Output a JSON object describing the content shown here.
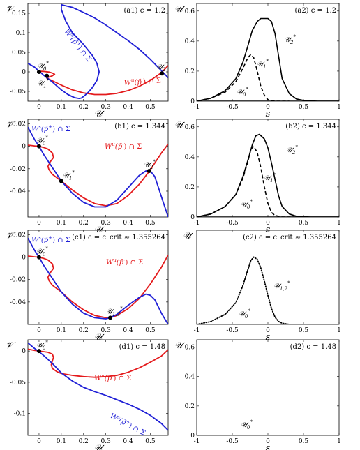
{
  "chart_data": [
    {
      "id": "a1",
      "type": "line",
      "title": "(a1) c = 1.2",
      "xlabel": "U",
      "ylabel": "V",
      "xlim": [
        -0.05,
        0.58
      ],
      "ylim": [
        -0.075,
        0.175
      ],
      "xticks": [
        0,
        0.1,
        0.2,
        0.3,
        0.4,
        0.5
      ],
      "xticklabels": [
        "0",
        "0.1",
        "0.2",
        "0.3",
        "0.4",
        "0.5"
      ],
      "yticks": [
        -0.05,
        0,
        0.05,
        0.1,
        0.15
      ],
      "yticklabels": [
        "-0.05",
        "0",
        "0.05",
        "0.1",
        "0.15"
      ],
      "series": [
        {
          "name": "W^u(p̄^-) ∩ Σ",
          "color": "#e41a1c",
          "x": [
            0,
            0.005,
            0.012,
            0.02,
            0.03,
            0.045,
            0.06,
            0.07,
            0.06,
            0.045,
            0.035,
            0.05,
            0.1,
            0.15,
            0.2,
            0.25,
            0.3,
            0.35,
            0.4,
            0.45,
            0.5,
            0.55,
            0.58
          ],
          "y": [
            0,
            0.001,
            0.0015,
            0.0012,
            0.0006,
            -0.0005,
            -0.003,
            -0.006,
            -0.01,
            -0.013,
            -0.016,
            -0.02,
            -0.034,
            -0.046,
            -0.054,
            -0.058,
            -0.058,
            -0.055,
            -0.048,
            -0.037,
            -0.022,
            -0.002,
            0.016
          ]
        },
        {
          "name": "W^s(p̄^+) ∩ Σ",
          "color": "#1f1fd6",
          "x": [
            -0.05,
            -0.02,
            0,
            0.02,
            0.04,
            0.06,
            0.08,
            0.1,
            0.13,
            0.16,
            0.18,
            0.19,
            0.2,
            0.22,
            0.24,
            0.26,
            0.27,
            0.26,
            0.24,
            0.2,
            0.15,
            0.12,
            0.1,
            0.1,
            0.15,
            0.2,
            0.25,
            0.3,
            0.35,
            0.4,
            0.45,
            0.5,
            0.55,
            0.58
          ],
          "y": [
            0.022,
            0.012,
            0.002,
            -0.008,
            -0.017,
            -0.026,
            -0.036,
            -0.046,
            -0.058,
            -0.066,
            -0.068,
            -0.067,
            -0.063,
            -0.053,
            -0.04,
            -0.022,
            0,
            0.022,
            0.042,
            0.07,
            0.1,
            0.13,
            0.16,
            0.172,
            0.165,
            0.152,
            0.138,
            0.12,
            0.1,
            0.08,
            0.058,
            0.032,
            0.003,
            -0.015
          ]
        }
      ],
      "points": [
        {
          "label": "U0*",
          "x": 0,
          "y": 0
        },
        {
          "label": "U1*",
          "x": 0.035,
          "y": -0.01
        },
        {
          "label": "U2*",
          "x": 0.552,
          "y": -0.004
        }
      ]
    },
    {
      "id": "a2",
      "type": "line",
      "title": "(a2) c = 1.2",
      "xlabel": "s",
      "ylabel": "U",
      "xlim": [
        -1,
        1
      ],
      "ylim": [
        0,
        0.65
      ],
      "xticks": [
        -1,
        -0.5,
        0,
        0.5,
        1
      ],
      "xticklabels": [
        "-1",
        "-0.5",
        "0",
        "0.5",
        "1"
      ],
      "yticks": [
        0,
        0.2,
        0.4,
        0.6
      ],
      "yticklabels": [
        "0",
        "0.2",
        "0.4",
        "0.6"
      ],
      "series": [
        {
          "name": "U2*",
          "style": "solid",
          "x": [
            -1,
            -0.8,
            -0.6,
            -0.45,
            -0.35,
            -0.28,
            -0.22,
            -0.15,
            -0.1,
            0,
            0.05,
            0.1,
            0.15,
            0.2,
            0.3,
            0.4,
            0.5,
            0.7,
            1
          ],
          "y": [
            0,
            0.02,
            0.07,
            0.15,
            0.26,
            0.37,
            0.47,
            0.53,
            0.55,
            0.55,
            0.53,
            0.45,
            0.3,
            0.15,
            0.05,
            0.015,
            0.005,
            0,
            0
          ]
        },
        {
          "name": "U1*",
          "style": "dashed",
          "x": [
            -1,
            -0.8,
            -0.6,
            -0.45,
            -0.35,
            -0.28,
            -0.24,
            -0.2,
            -0.15,
            -0.1,
            -0.05,
            0,
            0.1,
            0.3
          ],
          "y": [
            0,
            0.02,
            0.06,
            0.13,
            0.22,
            0.29,
            0.31,
            0.29,
            0.2,
            0.1,
            0.04,
            0.01,
            0,
            0
          ]
        },
        {
          "name": "U0*",
          "style": "solid",
          "x": [
            -1,
            1
          ],
          "y": [
            0,
            0
          ]
        }
      ]
    },
    {
      "id": "b1",
      "type": "line",
      "title": "(b1) c = 1.344",
      "xlabel": "U",
      "ylabel": "V",
      "xlim": [
        -0.05,
        0.58
      ],
      "ylim": [
        -0.063,
        0.024
      ],
      "xticks": [
        0,
        0.1,
        0.2,
        0.3,
        0.4,
        0.5
      ],
      "xticklabels": [
        "0",
        "0.1",
        "0.2",
        "0.3",
        "0.4",
        "0.5"
      ],
      "yticks": [
        -0.04,
        -0.02,
        0,
        0.02
      ],
      "yticklabels": [
        "-0.04",
        "-0.02",
        "0",
        "0.02"
      ],
      "series": [
        {
          "name": "W^u(p̄^-) ∩ Σ",
          "color": "#e41a1c",
          "x": [
            -0.05,
            -0.02,
            0,
            0.02,
            0.04,
            0.06,
            0.065,
            0.05,
            0.04,
            0.045,
            0.06,
            0.1,
            0.15,
            0.2,
            0.25,
            0.3,
            0.35,
            0.4,
            0.45,
            0.5,
            0.55,
            0.58
          ],
          "y": [
            0.001,
            0.0003,
            0,
            -0.001,
            -0.0025,
            -0.006,
            -0.01,
            -0.014,
            -0.018,
            -0.021,
            -0.025,
            -0.031,
            -0.039,
            -0.046,
            -0.051,
            -0.053,
            -0.051,
            -0.044,
            -0.034,
            -0.021,
            -0.006,
            0.002
          ]
        },
        {
          "name": "W^s(p̄^+) ∩ Σ",
          "color": "#1f1fd6",
          "x": [
            -0.05,
            -0.02,
            0,
            0.02,
            0.05,
            0.1,
            0.15,
            0.2,
            0.25,
            0.3,
            0.35,
            0.4,
            0.45,
            0.48,
            0.5,
            0.52,
            0.55,
            0.58
          ],
          "y": [
            0.017,
            0.006,
            0,
            -0.007,
            -0.016,
            -0.031,
            -0.042,
            -0.05,
            -0.054,
            -0.054,
            -0.048,
            -0.037,
            -0.026,
            -0.022,
            -0.022,
            -0.027,
            -0.045,
            -0.063
          ]
        }
      ],
      "points": [
        {
          "label": "U0*",
          "x": 0,
          "y": 0
        },
        {
          "label": "U1*",
          "x": 0.1,
          "y": -0.031
        },
        {
          "label": "U2*",
          "x": 0.495,
          "y": -0.022
        }
      ]
    },
    {
      "id": "b2",
      "type": "line",
      "title": "(b2) c = 1.344",
      "xlabel": "s",
      "ylabel": "U",
      "xlim": [
        -1,
        1
      ],
      "ylim": [
        0,
        0.65
      ],
      "xticks": [
        -1,
        -0.5,
        0,
        0.5,
        1
      ],
      "xticklabels": [
        "-1",
        "-0.5",
        "0",
        "0.5",
        "1"
      ],
      "yticks": [
        0,
        0.2,
        0.4,
        0.6
      ],
      "yticklabels": [
        "0",
        "0.2",
        "0.4",
        "0.6"
      ],
      "series": [
        {
          "name": "U2*",
          "style": "solid",
          "x": [
            -1,
            -0.8,
            -0.6,
            -0.45,
            -0.35,
            -0.28,
            -0.22,
            -0.17,
            -0.12,
            -0.05,
            0,
            0.05,
            0.1,
            0.15,
            0.2,
            0.3,
            0.4,
            0.6,
            1
          ],
          "y": [
            0,
            0.02,
            0.07,
            0.15,
            0.27,
            0.38,
            0.48,
            0.54,
            0.55,
            0.52,
            0.46,
            0.36,
            0.25,
            0.14,
            0.07,
            0.02,
            0.005,
            0,
            0
          ]
        },
        {
          "name": "U1*",
          "style": "dashed",
          "x": [
            -1,
            -0.8,
            -0.6,
            -0.45,
            -0.35,
            -0.28,
            -0.24,
            -0.2,
            -0.15,
            -0.1,
            -0.05,
            0,
            0.05,
            0.1,
            0.2,
            0.4
          ],
          "y": [
            0,
            0.02,
            0.07,
            0.15,
            0.26,
            0.37,
            0.45,
            0.47,
            0.43,
            0.33,
            0.2,
            0.09,
            0.03,
            0.01,
            0,
            0
          ]
        },
        {
          "name": "U0*",
          "style": "solid",
          "x": [
            -1,
            1
          ],
          "y": [
            0,
            0
          ]
        }
      ]
    },
    {
      "id": "c1",
      "type": "line",
      "title": "(c1) c = c_crit ≈ 1.355264",
      "xlabel": "U",
      "ylabel": "V",
      "xlim": [
        -0.05,
        0.58
      ],
      "ylim": [
        -0.06,
        0.024
      ],
      "xticks": [
        0,
        0.1,
        0.2,
        0.3,
        0.4,
        0.5
      ],
      "xticklabels": [
        "0",
        "0.1",
        "0.2",
        "0.3",
        "0.4",
        "0.5"
      ],
      "yticks": [
        -0.04,
        -0.02,
        0,
        0.02
      ],
      "yticklabels": [
        "-0.04",
        "-0.02",
        "0",
        "0.02"
      ],
      "series": [
        {
          "name": "W^u(p̄^-) ∩ Σ",
          "color": "#e41a1c",
          "x": [
            -0.05,
            -0.02,
            0,
            0.02,
            0.04,
            0.06,
            0.065,
            0.05,
            0.04,
            0.045,
            0.06,
            0.1,
            0.15,
            0.2,
            0.25,
            0.3,
            0.32,
            0.35,
            0.4,
            0.45,
            0.5,
            0.55,
            0.58
          ],
          "y": [
            0.001,
            0.0003,
            0,
            -0.001,
            -0.0025,
            -0.006,
            -0.01,
            -0.014,
            -0.018,
            -0.021,
            -0.025,
            -0.031,
            -0.04,
            -0.047,
            -0.052,
            -0.054,
            -0.054,
            -0.052,
            -0.046,
            -0.037,
            -0.024,
            -0.009,
            0.002
          ]
        },
        {
          "name": "W^s(p̄^+) ∩ Σ",
          "color": "#1f1fd6",
          "x": [
            -0.05,
            -0.02,
            0,
            0.02,
            0.05,
            0.1,
            0.15,
            0.2,
            0.25,
            0.3,
            0.32,
            0.35,
            0.4,
            0.45,
            0.48,
            0.5,
            0.52,
            0.55,
            0.58
          ],
          "y": [
            0.017,
            0.006,
            0,
            -0.007,
            -0.016,
            -0.031,
            -0.042,
            -0.05,
            -0.054,
            -0.055,
            -0.054,
            -0.051,
            -0.043,
            -0.036,
            -0.033,
            -0.034,
            -0.038,
            -0.05,
            -0.06
          ]
        }
      ],
      "points": [
        {
          "label": "U0*",
          "x": 0,
          "y": 0
        },
        {
          "label": "U1,2*",
          "x": 0.32,
          "y": -0.054
        }
      ]
    },
    {
      "id": "c2",
      "type": "line",
      "title": "(c2) c = c_crit ≈ 1.355264",
      "xlabel": "s",
      "ylabel": "U",
      "xlim": [
        -1,
        1
      ],
      "ylim": [
        0,
        0.65
      ],
      "xticks": [
        -1,
        -0.5,
        0,
        0.5,
        1
      ],
      "xticklabels": [
        "-1",
        "-0.5",
        "0",
        "0.5",
        "1"
      ],
      "yticks": [],
      "yticklabels": [],
      "series": [
        {
          "name": "U1,2*",
          "style": "dotted",
          "x": [
            -1,
            -0.8,
            -0.6,
            -0.45,
            -0.35,
            -0.28,
            -0.24,
            -0.2,
            -0.15,
            -0.1,
            -0.05,
            0,
            0.05,
            0.1,
            0.15,
            0.2,
            0.3,
            0.5
          ],
          "y": [
            0,
            0.02,
            0.07,
            0.15,
            0.27,
            0.38,
            0.44,
            0.465,
            0.45,
            0.39,
            0.3,
            0.2,
            0.11,
            0.05,
            0.02,
            0.008,
            0,
            0
          ]
        },
        {
          "name": "U0*",
          "style": "solid",
          "x": [
            -1,
            1
          ],
          "y": [
            0,
            0
          ]
        }
      ]
    },
    {
      "id": "d1",
      "type": "line",
      "title": "(d1) c = 1.48",
      "xlabel": "U",
      "ylabel": "V",
      "xlim": [
        -0.05,
        0.58
      ],
      "ylim": [
        -0.135,
        0.018
      ],
      "xticks": [
        0,
        0.1,
        0.2,
        0.3,
        0.4,
        0.5
      ],
      "xticklabels": [
        "0",
        "0.1",
        "0.2",
        "0.3",
        "0.4",
        "0.5"
      ],
      "yticks": [
        -0.1,
        -0.05,
        0
      ],
      "yticklabels": [
        "-0.1",
        "-0.05",
        "0"
      ],
      "series": [
        {
          "name": "W^u(p̄^-) ∩ Σ",
          "color": "#e41a1c",
          "x": [
            -0.05,
            -0.02,
            0,
            0.02,
            0.04,
            0.06,
            0.065,
            0.06,
            0.055,
            0.06,
            0.08,
            0.1,
            0.15,
            0.2,
            0.25,
            0.3,
            0.35,
            0.4,
            0.45,
            0.5,
            0.55,
            0.58
          ],
          "y": [
            0.003,
            0.001,
            0,
            -0.001,
            -0.002,
            -0.005,
            -0.01,
            -0.016,
            -0.022,
            -0.028,
            -0.033,
            -0.036,
            -0.039,
            -0.041,
            -0.042,
            -0.041,
            -0.039,
            -0.034,
            -0.027,
            -0.018,
            -0.008,
            0.002
          ]
        },
        {
          "name": "W^s(p̄^+) ∩ Σ",
          "color": "#1f1fd6",
          "x": [
            -0.05,
            -0.02,
            0,
            0.03,
            0.06,
            0.1,
            0.15,
            0.2,
            0.25,
            0.3,
            0.35,
            0.4,
            0.45,
            0.5,
            0.55,
            0.58
          ],
          "y": [
            0.013,
            0.004,
            -0.001,
            -0.01,
            -0.02,
            -0.035,
            -0.048,
            -0.058,
            -0.065,
            -0.071,
            -0.078,
            -0.085,
            -0.093,
            -0.103,
            -0.116,
            -0.127
          ]
        }
      ],
      "points": [
        {
          "label": "U0*",
          "x": 0,
          "y": 0
        }
      ]
    },
    {
      "id": "d2",
      "type": "line",
      "title": "(d2) c = 1.48",
      "xlabel": "s",
      "ylabel": "U",
      "xlim": [
        -1,
        1
      ],
      "ylim": [
        0,
        0.65
      ],
      "xticks": [
        -1,
        -0.5,
        0,
        0.5,
        1
      ],
      "xticklabels": [
        "-1",
        "-0.5",
        "0",
        "0.5",
        "1"
      ],
      "yticks": [
        0,
        0.2,
        0.4,
        0.6
      ],
      "yticklabels": [
        "0",
        "0.2",
        "0.4",
        "0.6"
      ],
      "series": [
        {
          "name": "U0*",
          "style": "solid",
          "x": [
            -1,
            1
          ],
          "y": [
            0,
            0
          ]
        }
      ]
    }
  ],
  "colors": {
    "unstable_manifold": "#e41a1c",
    "stable_manifold": "#1f1fd6",
    "axes": "#000000"
  }
}
